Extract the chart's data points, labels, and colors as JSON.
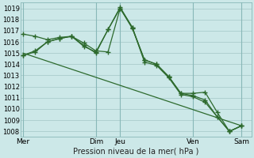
{
  "background_color": "#cce8e8",
  "grid_color": "#aacccc",
  "line_color": "#2d6a2d",
  "marker_color": "#2d6a2d",
  "xlabel": "Pression niveau de la mer( hPa )",
  "ylim": [
    1007.5,
    1019.5
  ],
  "yticks": [
    1008,
    1009,
    1010,
    1011,
    1012,
    1013,
    1014,
    1015,
    1016,
    1017,
    1018,
    1019
  ],
  "xlim": [
    -0.1,
    9.4
  ],
  "vline_positions": [
    0,
    3,
    4,
    7,
    9
  ],
  "xtick_positions": [
    0,
    3,
    4,
    7,
    9
  ],
  "xtick_labels": [
    "Mer",
    "Dim",
    "Jeu",
    "Ven",
    "Sam"
  ],
  "series": [
    {
      "x": [
        0.0,
        0.5,
        1.0,
        1.5,
        2.0,
        2.5,
        3.0,
        3.5,
        4.0,
        4.5,
        5.0,
        5.5,
        6.0,
        6.5,
        7.0,
        7.5,
        8.0,
        8.5,
        9.0
      ],
      "y": [
        1014.8,
        1015.2,
        1016.0,
        1016.3,
        1016.5,
        1015.9,
        1015.2,
        1015.1,
        1019.0,
        1017.2,
        1014.4,
        1014.0,
        1012.9,
        1011.4,
        1011.2,
        1010.8,
        1009.3,
        1008.0,
        1008.5
      ],
      "marker": true
    },
    {
      "x": [
        0.0,
        0.5,
        1.0,
        1.5,
        2.0,
        2.5,
        3.0,
        3.5,
        4.0,
        4.5,
        5.0,
        5.5,
        6.0,
        6.5,
        7.0,
        7.5,
        8.0,
        8.5,
        9.0
      ],
      "y": [
        1016.7,
        1016.5,
        1016.2,
        1016.4,
        1016.5,
        1015.7,
        1015.0,
        1017.1,
        1019.1,
        1017.3,
        1014.4,
        1014.0,
        1012.9,
        1011.4,
        1011.4,
        1011.5,
        1009.7,
        1008.0,
        1008.5
      ],
      "marker": true
    },
    {
      "x": [
        0.0,
        0.5,
        1.0,
        1.5,
        2.0,
        2.5,
        3.0,
        3.5,
        4.0,
        4.5,
        5.0,
        5.5,
        6.0,
        6.5,
        7.0,
        7.5,
        8.0,
        8.5,
        9.0
      ],
      "y": [
        1014.8,
        1015.1,
        1016.0,
        1016.3,
        1016.5,
        1015.6,
        1015.1,
        1017.1,
        1019.0,
        1017.3,
        1014.2,
        1013.9,
        1012.8,
        1011.3,
        1011.1,
        1010.6,
        1009.3,
        1008.0,
        1008.5
      ],
      "marker": true
    },
    {
      "x": [
        0.0,
        9.0
      ],
      "y": [
        1015.0,
        1008.5
      ],
      "marker": false
    }
  ]
}
